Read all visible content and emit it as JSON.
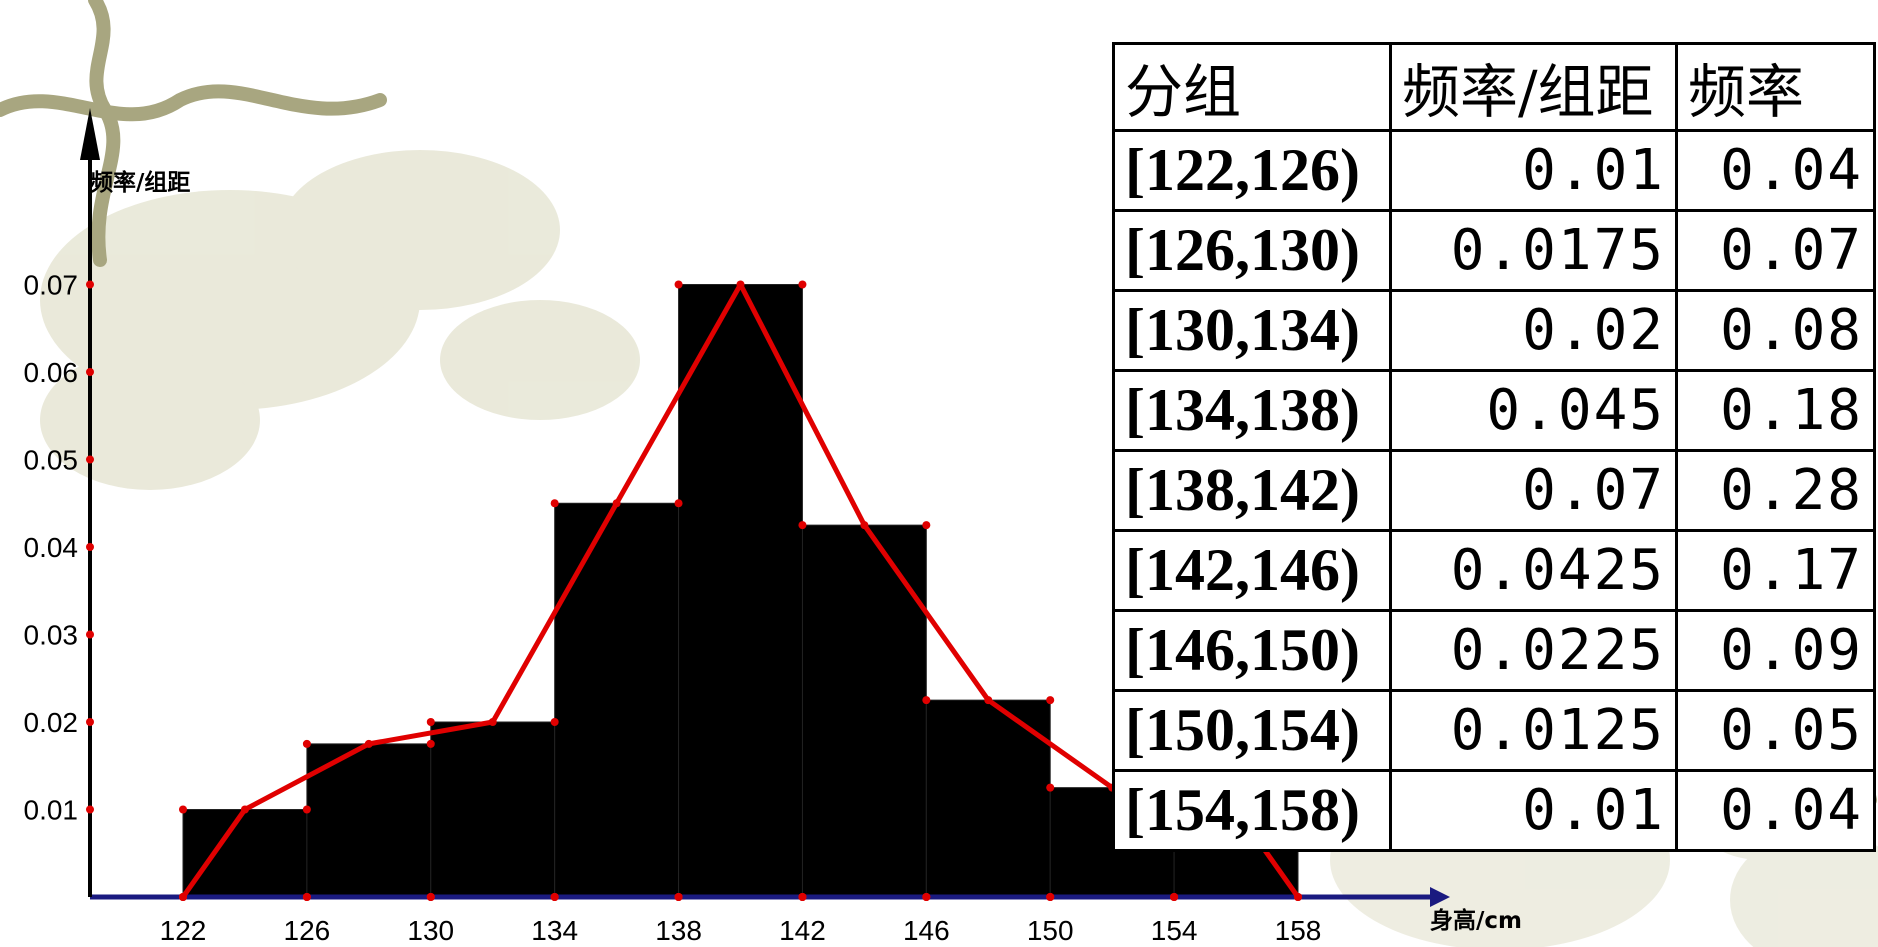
{
  "chart_data": {
    "type": "bar",
    "ylabel": "频率/组距",
    "xlabel": "身高/cm",
    "x_ticks": [
      "122",
      "126",
      "130",
      "134",
      "138",
      "142",
      "146",
      "150",
      "154",
      "158"
    ],
    "y_ticks": [
      "0.01",
      "0.02",
      "0.03",
      "0.04",
      "0.05",
      "0.06",
      "0.07"
    ],
    "ylim": [
      0,
      0.08
    ],
    "xlim": [
      122,
      158
    ],
    "categories": [
      "[122,126)",
      "[126,130)",
      "[130,134)",
      "[134,138)",
      "[138,142)",
      "[142,146)",
      "[146,150)",
      "[150,154)",
      "[154,158)"
    ],
    "bins": [
      {
        "from": 122,
        "to": 126,
        "value": 0.01
      },
      {
        "from": 126,
        "to": 130,
        "value": 0.0175
      },
      {
        "from": 130,
        "to": 134,
        "value": 0.02
      },
      {
        "from": 134,
        "to": 138,
        "value": 0.045
      },
      {
        "from": 138,
        "to": 142,
        "value": 0.07
      },
      {
        "from": 142,
        "to": 146,
        "value": 0.0425
      },
      {
        "from": 146,
        "to": 150,
        "value": 0.0225
      },
      {
        "from": 150,
        "to": 154,
        "value": 0.0125
      },
      {
        "from": 154,
        "to": 158,
        "value": 0.01
      }
    ],
    "polygon": [
      {
        "x": 122,
        "y": 0
      },
      {
        "x": 124,
        "y": 0.01
      },
      {
        "x": 128,
        "y": 0.0175
      },
      {
        "x": 132,
        "y": 0.02
      },
      {
        "x": 136,
        "y": 0.045
      },
      {
        "x": 140,
        "y": 0.07
      },
      {
        "x": 144,
        "y": 0.0425
      },
      {
        "x": 148,
        "y": 0.0225
      },
      {
        "x": 152,
        "y": 0.0125
      },
      {
        "x": 156,
        "y": 0.01
      },
      {
        "x": 158,
        "y": 0
      }
    ],
    "grid": false,
    "bar_color": "#000000",
    "polygon_color": "#e00000",
    "axis_color": "#1a1a80"
  },
  "table": {
    "headers": [
      "分组",
      "频率/组距",
      "频率"
    ],
    "rows": [
      {
        "group": "[122,126)",
        "density": "0.01",
        "freq": "0.04"
      },
      {
        "group": "[126,130)",
        "density": "0.0175",
        "freq": "0.07"
      },
      {
        "group": "[130,134)",
        "density": "0.02",
        "freq": "0.08"
      },
      {
        "group": "[134,138)",
        "density": "0.045",
        "freq": "0.18"
      },
      {
        "group": "[138,142)",
        "density": "0.07",
        "freq": "0.28"
      },
      {
        "group": "[142,146)",
        "density": "0.0425",
        "freq": "0.17"
      },
      {
        "group": "[146,150)",
        "density": "0.0225",
        "freq": "0.09"
      },
      {
        "group": "[150,154)",
        "density": "0.0125",
        "freq": "0.05"
      },
      {
        "group": "[154,158)",
        "density": "0.01",
        "freq": "0.04"
      }
    ]
  },
  "decoration": {
    "vine_color": "#a8a680",
    "leaf_color": "#d9d8bd"
  }
}
